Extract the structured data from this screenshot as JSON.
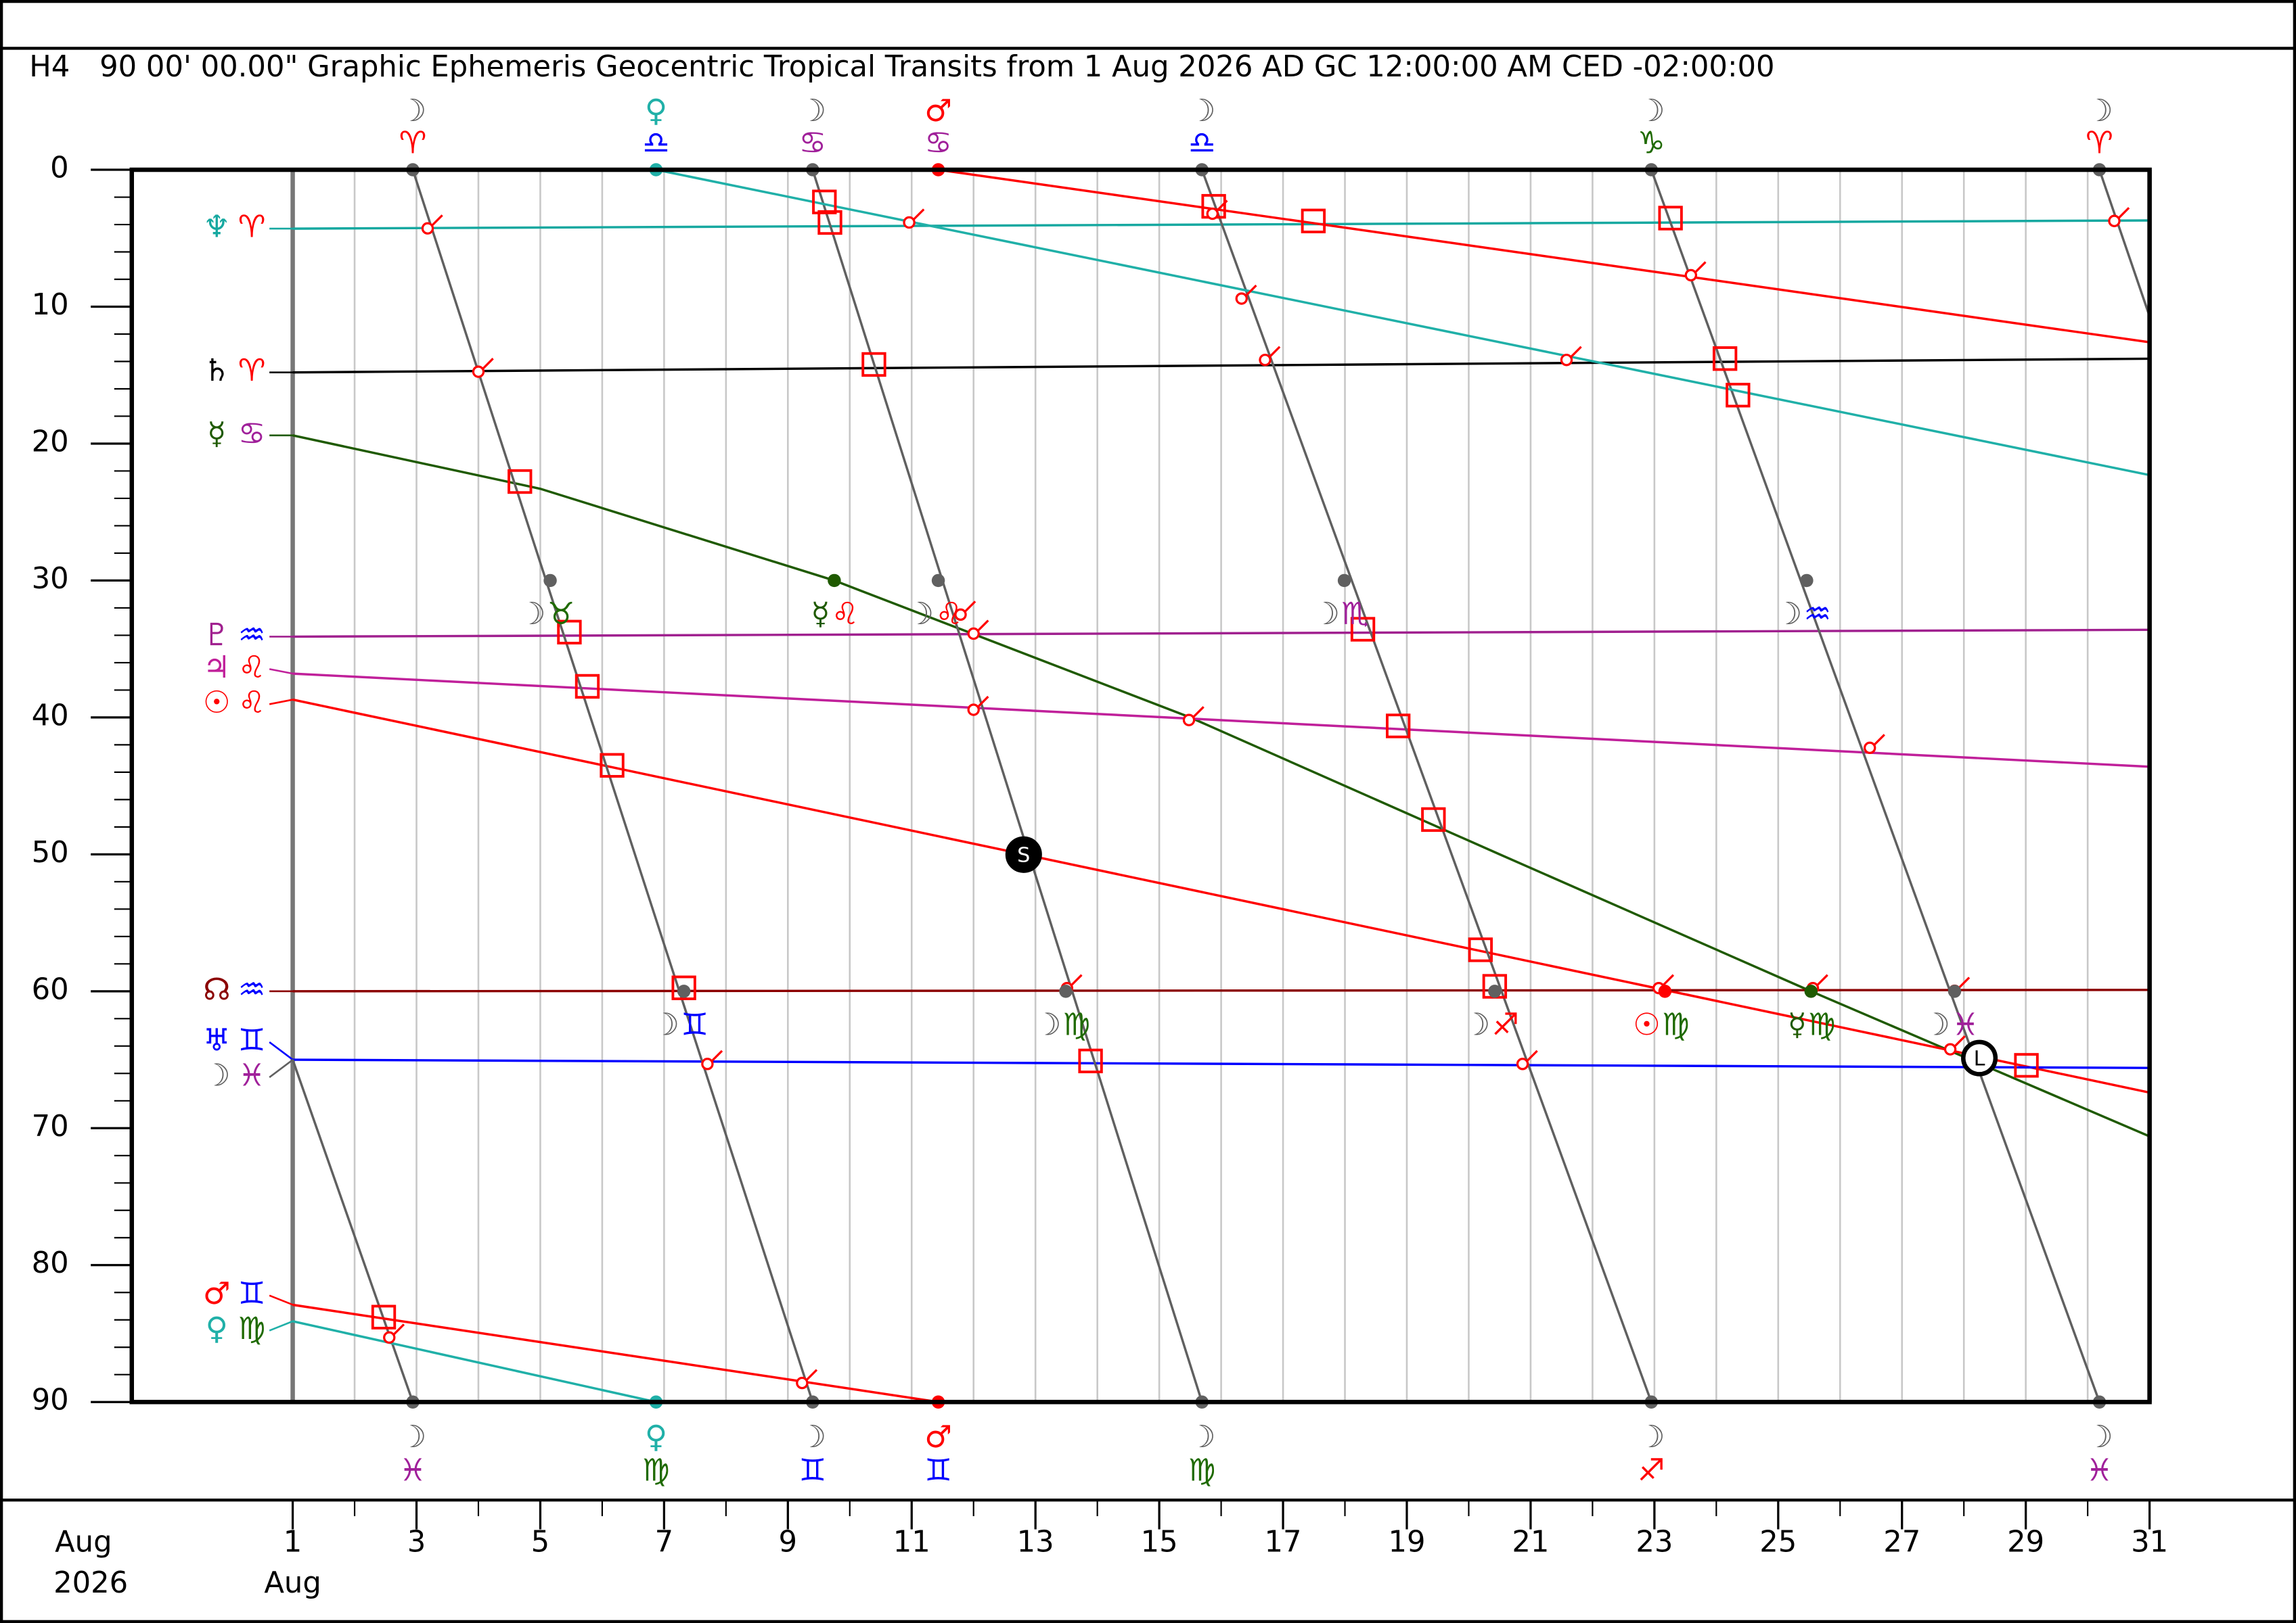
{
  "chart_data": {
    "type": "line",
    "code": "H4",
    "title": "90 00' 00.00\" Graphic Ephemeris Geocentric Tropical Transits from 1 Aug 2026 AD GC 12:00:00 AM CED -02:00:00",
    "x_label_month": "Aug",
    "x_label_year": "2026",
    "x_label_start_month": "Aug",
    "xlim": [
      -1.6,
      31
    ],
    "ylim": [
      0,
      90
    ],
    "xticks": [
      1,
      3,
      5,
      7,
      9,
      11,
      13,
      15,
      17,
      19,
      21,
      23,
      25,
      27,
      29,
      31
    ],
    "xminor": [
      2,
      4,
      6,
      8,
      10,
      12,
      14,
      16,
      18,
      20,
      22,
      24,
      26,
      28,
      30
    ],
    "yticks": [
      0,
      10,
      20,
      30,
      40,
      50,
      60,
      70,
      80,
      90
    ],
    "yminor": [
      2,
      4,
      6,
      8,
      12,
      14,
      16,
      18,
      22,
      24,
      26,
      28,
      32,
      34,
      36,
      38,
      42,
      44,
      46,
      48,
      52,
      54,
      56,
      58,
      62,
      64,
      66,
      68,
      72,
      74,
      76,
      78,
      82,
      84,
      86,
      88
    ],
    "grid": true,
    "sign_colors": {
      "♈": "#ff0000",
      "♌": "#ff0000",
      "♐": "#ff0000",
      "♉": "#1f6a00",
      "♍": "#1f6a00",
      "♑": "#1f6a00",
      "♊": "#0000ff",
      "♎": "#0000ff",
      "♒": "#0000ff",
      "♋": "#a0209a",
      "♏": "#a0209a",
      "♓": "#a0209a"
    },
    "aspect_color": "#ff0000",
    "series": [
      {
        "name": "♆",
        "sign": "♈",
        "color": "#16a8a0",
        "x": [
          1,
          31
        ],
        "values": [
          4.3,
          3.7
        ]
      },
      {
        "name": "♄",
        "sign": "♈",
        "color": "#000000",
        "x": [
          1,
          31
        ],
        "values": [
          14.8,
          13.8
        ]
      },
      {
        "name": "☿",
        "sign": "♋",
        "color": "#1f5a00",
        "x": [
          1,
          5,
          9.75,
          15.5,
          20.5,
          25.53,
          31
        ],
        "values": [
          19.4,
          23.3,
          30,
          40,
          50,
          60,
          70.6
        ]
      },
      {
        "name": "♇",
        "sign": "♒",
        "color": "#a0208f",
        "x": [
          1,
          31
        ],
        "values": [
          34.1,
          33.6
        ]
      },
      {
        "name": "♃",
        "sign": "♌",
        "color": "#c0209a",
        "x": [
          1,
          31
        ],
        "values": [
          36.8,
          43.6
        ]
      },
      {
        "name": "☉",
        "sign": "♌",
        "color": "#ff0000",
        "x": [
          1,
          31
        ],
        "values": [
          38.7,
          67.4
        ]
      },
      {
        "name": "☊",
        "sign": "♒",
        "color": "#8b0000",
        "x": [
          1,
          31
        ],
        "values": [
          60,
          59.9
        ]
      },
      {
        "name": "♅",
        "sign": "♊",
        "color": "#0000ff",
        "x": [
          1,
          31
        ],
        "values": [
          65,
          65.6
        ]
      },
      {
        "name": "☽",
        "sign": "♓",
        "color": "#606060",
        "x": [
          1,
          2.94,
          null,
          2.94,
          9.4,
          null,
          9.4,
          15.69,
          null,
          15.69,
          22.95,
          null,
          22.95,
          30.19,
          null,
          30.19,
          31
        ],
        "values": [
          65,
          90,
          null,
          0,
          90,
          null,
          0,
          90,
          null,
          0,
          90,
          null,
          0,
          90,
          null,
          0,
          10.7
        ]
      },
      {
        "name": "♂",
        "sign": "♊",
        "color": "#ff0000",
        "x": [
          1,
          11.43,
          null,
          11.43,
          31
        ],
        "values": [
          82.9,
          90,
          null,
          0,
          12.6
        ]
      },
      {
        "name": "♀",
        "sign": "♍",
        "color": "#20b0a8",
        "x": [
          1,
          6.87,
          null,
          6.87,
          31
        ],
        "values": [
          84.1,
          90,
          null,
          0,
          22.3
        ]
      }
    ],
    "ingresses": [
      {
        "x": 2.94,
        "y": 0,
        "planet": "☽",
        "sign": "♈"
      },
      {
        "x": 6.87,
        "y": 0,
        "planet": "♀",
        "sign": "♎"
      },
      {
        "x": 9.4,
        "y": 0,
        "planet": "☽",
        "sign": "♋"
      },
      {
        "x": 11.43,
        "y": 0,
        "planet": "♂",
        "sign": "♋"
      },
      {
        "x": 15.69,
        "y": 0,
        "planet": "☽",
        "sign": "♎"
      },
      {
        "x": 22.95,
        "y": 0,
        "planet": "☽",
        "sign": "♑"
      },
      {
        "x": 30.19,
        "y": 0,
        "planet": "☽",
        "sign": "♈"
      },
      {
        "x": 2.94,
        "y": 90,
        "planet": "☽",
        "sign": "♓"
      },
      {
        "x": 6.87,
        "y": 90,
        "planet": "♀",
        "sign": "♍"
      },
      {
        "x": 9.4,
        "y": 90,
        "planet": "☽",
        "sign": "♊"
      },
      {
        "x": 11.43,
        "y": 90,
        "planet": "♂",
        "sign": "♊"
      },
      {
        "x": 15.69,
        "y": 90,
        "planet": "☽",
        "sign": "♍"
      },
      {
        "x": 22.95,
        "y": 90,
        "planet": "☽",
        "sign": "♐"
      },
      {
        "x": 30.19,
        "y": 90,
        "planet": "☽",
        "sign": "♓"
      },
      {
        "x": 5.16,
        "y": 30,
        "planet": "☽",
        "sign": "♉"
      },
      {
        "x": 9.75,
        "y": 30,
        "planet": "☿",
        "sign": "♌"
      },
      {
        "x": 11.43,
        "y": 30,
        "planet": "☽",
        "sign": "♌"
      },
      {
        "x": 17.99,
        "y": 30,
        "planet": "☽",
        "sign": "♏"
      },
      {
        "x": 25.46,
        "y": 30,
        "planet": "☽",
        "sign": "♒"
      },
      {
        "x": 7.32,
        "y": 60,
        "planet": "☽",
        "sign": "♊"
      },
      {
        "x": 13.49,
        "y": 60,
        "planet": "☽",
        "sign": "♍"
      },
      {
        "x": 20.42,
        "y": 60,
        "planet": "☽",
        "sign": "♐"
      },
      {
        "x": 23.17,
        "y": 60,
        "planet": "☉",
        "sign": "♍"
      },
      {
        "x": 25.53,
        "y": 60,
        "planet": "☿",
        "sign": "♍"
      },
      {
        "x": 27.85,
        "y": 60,
        "planet": "☽",
        "sign": "♓"
      }
    ],
    "squares": {
      "x": [
        9.59,
        9.68,
        15.88,
        17.49,
        23.26,
        10.39,
        24.14,
        24.35,
        4.67,
        5.47,
        18.29,
        5.76,
        18.86,
        6.16,
        19.43,
        20.19,
        7.32,
        20.42,
        13.89,
        29.01,
        2.47
      ],
      "y": [
        2.35,
        3.85,
        2.67,
        3.74,
        3.53,
        14.22,
        13.79,
        16.46,
        22.77,
        33.77,
        33.56,
        37.73,
        40.62,
        43.5,
        47.46,
        56.97,
        59.75,
        59.64,
        65.09,
        65.41,
        83.8
      ]
    },
    "minor_aspects": {
      "x": [
        3.18,
        4.0,
        10.96,
        15.86,
        16.33,
        16.71,
        21.58,
        23.59,
        11.79,
        12.0,
        12.0,
        15.48,
        26.48,
        13.51,
        23.07,
        25.56,
        27.85,
        7.7,
        20.87,
        27.78,
        2.56,
        9.23,
        30.43
      ],
      "y": [
        4.28,
        14.75,
        3.85,
        3.21,
        9.41,
        13.89,
        13.89,
        7.7,
        32.49,
        33.88,
        39.44,
        40.19,
        42.22,
        59.77,
        59.77,
        59.77,
        59.96,
        65.31,
        65.31,
        64.24,
        85.29,
        88.61,
        3.74
      ]
    },
    "events": [
      {
        "x": 12.81,
        "y": 50.02,
        "label": "S"
      },
      {
        "x": 28.25,
        "y": 64.88,
        "label": "L"
      }
    ]
  }
}
